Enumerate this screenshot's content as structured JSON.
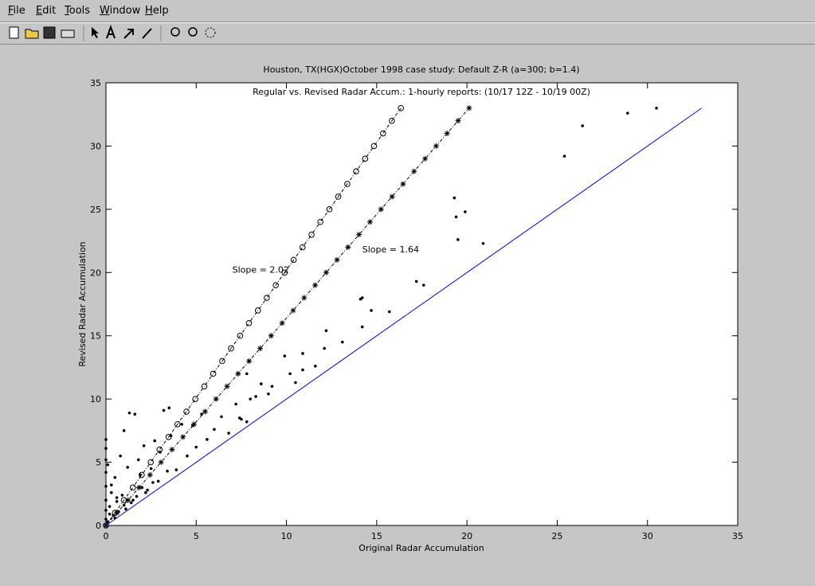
{
  "menu": [
    "File",
    "Edit",
    "Tools",
    "Window",
    "Help"
  ],
  "chart_data": {
    "type": "scatter",
    "title": "Houston, TX(HGX)October 1998 case study: Default Z-R (a=300; b=1.4)",
    "subtitle": "Regular vs. Revised Radar Accum.: 1-hourly reports: (10/17 12Z - 10/19 00Z)",
    "xlabel": "Original Radar Accumulation",
    "ylabel": "Revised Radar Accumulation",
    "xlim": [
      0,
      35
    ],
    "ylim": [
      0,
      35
    ],
    "xticks": [
      0,
      5,
      10,
      15,
      20,
      25,
      30,
      35
    ],
    "yticks": [
      0,
      5,
      10,
      15,
      20,
      25,
      30,
      35
    ],
    "annotations": [
      {
        "text": "Slope = 2.02",
        "x": 7.0,
        "y": 20.0
      },
      {
        "text": "Slope = 1.64",
        "x": 14.2,
        "y": 21.6
      }
    ],
    "series": [
      {
        "color": "#000000",
        "marker": "dot",
        "linestyle": "none",
        "x": [
          30.5,
          28.9,
          26.4,
          25.4,
          19.3,
          19.9,
          19.4,
          19.5,
          20.9,
          17.2,
          17.6,
          14.2,
          14.1,
          14.7,
          15.7,
          14.2,
          12.2,
          13.1,
          12.1,
          10.9,
          11.6,
          10.9,
          10.2,
          10.5,
          9.0,
          8.3,
          7.8,
          7.4,
          0,
          0,
          0,
          0,
          0,
          0,
          0,
          0,
          0.1,
          0.2,
          0.3,
          0.4,
          0.5,
          0.6,
          0.8,
          0.9,
          1.0,
          1.1,
          1.2,
          1.3,
          1.5,
          1.6,
          1.8,
          2.0,
          2.1,
          2.3,
          2.5,
          2.7,
          2.9,
          3.0,
          3.2,
          3.4,
          3.5,
          3.6,
          3.9,
          4.2,
          4.5,
          4.8,
          5.0,
          5.3,
          5.6,
          6.0,
          6.4,
          6.8,
          7.2,
          7.5,
          7.8,
          8.0,
          8.6,
          9.2,
          9.9,
          0.2,
          0.5,
          0.7,
          1.0,
          1.4,
          1.7,
          2.2,
          2.6,
          0.3,
          0.1,
          0.6,
          1.9
        ],
        "values": [
          33.0,
          32.6,
          31.6,
          29.2,
          25.9,
          24.8,
          24.4,
          22.6,
          22.3,
          19.3,
          19.0,
          18.0,
          17.9,
          17.0,
          16.9,
          15.7,
          15.4,
          14.5,
          14.0,
          13.6,
          12.6,
          12.3,
          12.0,
          11.3,
          10.4,
          10.2,
          8.2,
          8.5,
          0.5,
          1.2,
          2.0,
          3.1,
          4.2,
          5.2,
          6.1,
          6.8,
          0.3,
          1.5,
          2.6,
          0.8,
          3.8,
          1.9,
          5.5,
          2.4,
          7.5,
          1.3,
          4.6,
          8.9,
          2.0,
          8.8,
          5.2,
          3.0,
          6.3,
          2.8,
          4.5,
          6.7,
          3.5,
          5.8,
          9.1,
          4.3,
          9.3,
          7.1,
          4.4,
          8.0,
          5.5,
          7.9,
          6.2,
          8.8,
          6.8,
          7.6,
          8.6,
          7.3,
          9.6,
          8.4,
          12.0,
          10.0,
          11.2,
          11.0,
          13.4,
          0.9,
          0.6,
          1.1,
          1.6,
          1.8,
          2.3,
          2.6,
          3.4,
          3.2,
          4.8,
          2.2,
          4.0
        ]
      },
      {
        "color": "#000000",
        "marker": "circle",
        "linestyle": "dashdot",
        "x": [
          0,
          0.5,
          0.99,
          1.49,
          1.98,
          2.48,
          2.97,
          3.47,
          3.96,
          4.46,
          4.95,
          5.45,
          5.94,
          6.44,
          6.93,
          7.43,
          7.92,
          8.42,
          8.91,
          9.41,
          9.9,
          10.4,
          10.89,
          11.39,
          11.88,
          12.38,
          12.87,
          13.37,
          13.86,
          14.36,
          14.85,
          15.35,
          15.84,
          16.34
        ],
        "values": [
          0,
          1,
          2,
          3,
          4,
          5,
          6,
          7,
          8,
          9,
          10,
          11,
          12,
          13,
          14,
          15,
          16,
          17,
          18,
          19,
          20,
          21,
          22,
          23,
          24,
          25,
          26,
          27,
          28,
          29,
          30,
          31,
          32,
          33
        ]
      },
      {
        "color": "#000000",
        "marker": "star",
        "linestyle": "dashdot",
        "x": [
          0,
          0.61,
          1.22,
          1.83,
          2.44,
          3.05,
          3.66,
          4.27,
          4.88,
          5.49,
          6.1,
          6.71,
          7.32,
          7.93,
          8.54,
          9.15,
          9.76,
          10.37,
          10.98,
          11.59,
          12.2,
          12.8,
          13.41,
          14.02,
          14.63,
          15.24,
          15.85,
          16.46,
          17.07,
          17.68,
          18.29,
          18.9,
          19.51,
          20.12
        ],
        "values": [
          0,
          1,
          2,
          3,
          4,
          5,
          6,
          7,
          8,
          9,
          10,
          11,
          12,
          13,
          14,
          15,
          16,
          17,
          18,
          19,
          20,
          21,
          22,
          23,
          24,
          25,
          26,
          27,
          28,
          29,
          30,
          31,
          32,
          33
        ]
      },
      {
        "color": "#0000ff",
        "marker": "none",
        "linestyle": "solid",
        "x": [
          0,
          33
        ],
        "values": [
          0,
          33
        ]
      }
    ]
  }
}
